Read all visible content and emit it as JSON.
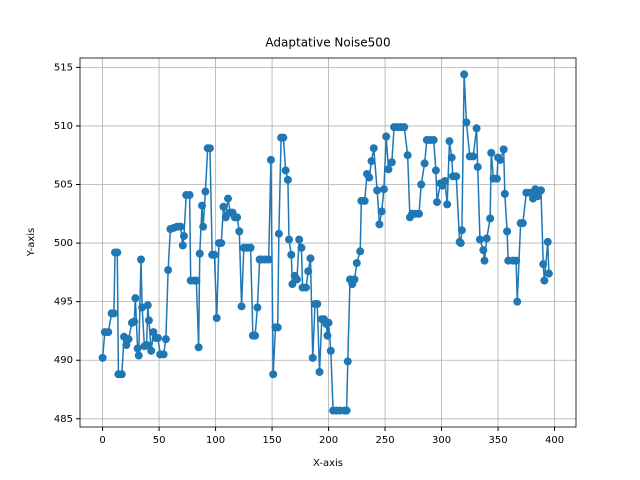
{
  "chart_data": {
    "type": "line",
    "title": "Adaptative Noise500",
    "x_label": "X-axis",
    "y_label": "Y-axis",
    "xlim": [
      -20,
      419
    ],
    "ylim": [
      484.3,
      515.8
    ],
    "xticks": [
      0,
      50,
      100,
      150,
      200,
      250,
      300,
      350,
      400
    ],
    "yticks": [
      485,
      490,
      495,
      500,
      505,
      510,
      515
    ],
    "grid": true,
    "series": [
      {
        "name": "Adaptative Noise500",
        "color": "#1f77b4",
        "x": [
          0,
          2,
          5,
          8,
          10,
          11,
          13,
          14,
          17,
          19,
          21,
          23,
          26,
          28,
          29,
          31,
          32,
          34,
          35,
          37,
          39,
          40,
          41,
          43,
          45,
          47,
          49,
          51,
          54,
          56,
          58,
          60,
          63,
          66,
          69,
          71,
          72,
          74,
          77,
          78,
          81,
          83,
          85,
          86,
          88,
          89,
          91,
          93,
          95,
          97,
          99,
          101,
          103,
          105,
          107,
          109,
          111,
          113,
          115,
          117,
          119,
          121,
          123,
          125,
          128,
          131,
          133,
          135,
          137,
          139,
          141,
          144,
          147,
          149,
          151,
          153,
          155,
          156,
          158,
          160,
          162,
          164,
          165,
          167,
          168,
          170,
          172,
          174,
          176,
          177,
          180,
          182,
          184,
          186,
          188,
          190,
          192,
          194,
          196,
          198,
          199,
          200,
          202,
          204,
          207,
          210,
          214,
          216,
          217,
          219,
          221,
          223,
          225,
          228,
          229,
          232,
          234,
          236,
          238,
          240,
          243,
          245,
          247,
          249,
          251,
          253,
          256,
          258,
          261,
          264,
          267,
          270,
          272,
          274,
          277,
          280,
          282,
          285,
          287,
          290,
          293,
          295,
          296,
          299,
          301,
          303,
          305,
          307,
          309,
          310,
          313,
          316,
          317,
          318,
          320,
          322,
          325,
          328,
          331,
          332,
          334,
          337,
          338,
          340,
          343,
          344,
          346,
          349,
          350,
          352,
          355,
          356,
          358,
          359,
          363,
          366,
          367,
          370,
          372,
          375,
          378,
          381,
          383,
          385,
          388,
          390,
          391,
          394,
          395
        ],
        "values": [
          490.2,
          492.4,
          492.4,
          494,
          494,
          499.2,
          499.2,
          488.8,
          488.8,
          492,
          491.3,
          491.8,
          493.2,
          493.3,
          495.3,
          491,
          490.4,
          498.6,
          494.5,
          491.2,
          491.3,
          494.7,
          493.4,
          490.8,
          492.4,
          491.9,
          491.9,
          490.5,
          490.5,
          491.8,
          497.7,
          501.2,
          501.3,
          501.4,
          501.4,
          499.8,
          500.6,
          504.1,
          504.1,
          496.8,
          496.8,
          496.8,
          491.1,
          499.1,
          503.2,
          501.4,
          504.4,
          508.1,
          508.1,
          499,
          499,
          493.6,
          500,
          500,
          503.1,
          502.2,
          503.8,
          502.6,
          502.6,
          502.2,
          502.2,
          501,
          494.6,
          499.6,
          499.6,
          499.6,
          492.1,
          492.1,
          494.5,
          498.6,
          498.6,
          498.6,
          498.6,
          507.1,
          488.8,
          492.8,
          492.8,
          500.8,
          509,
          509,
          506.2,
          505.4,
          500.3,
          499,
          496.5,
          497.2,
          496.9,
          500.3,
          499.6,
          496.2,
          496.2,
          497.6,
          498.7,
          490.2,
          494.8,
          494.8,
          489,
          493.5,
          493.5,
          493.1,
          492.1,
          493.2,
          490.8,
          485.7,
          485.7,
          485.7,
          485.7,
          485.7,
          489.9,
          496.9,
          496.5,
          496.9,
          498.3,
          499.3,
          503.6,
          503.6,
          505.9,
          505.6,
          507,
          508.1,
          504.5,
          501.6,
          502.7,
          504.6,
          509.1,
          506.3,
          506.9,
          509.9,
          509.9,
          509.9,
          509.9,
          507.5,
          502.2,
          502.5,
          502.5,
          502.5,
          505,
          506.8,
          508.8,
          508.8,
          508.8,
          506.2,
          503.5,
          505.1,
          504.9,
          505.3,
          503.3,
          508.7,
          507.3,
          505.7,
          505.7,
          500.1,
          500,
          501.1,
          514.4,
          510.3,
          507.4,
          507.4,
          509.8,
          506.5,
          500.3,
          499.4,
          498.5,
          500.4,
          502.1,
          507.7,
          505.5,
          505.5,
          507.3,
          507.1,
          508,
          504.2,
          501,
          498.5,
          498.5,
          498.5,
          495,
          501.7,
          501.7,
          504.3,
          504.3,
          503.8,
          504.6,
          504,
          504.5,
          498.2,
          496.8,
          500.1,
          497.4
        ]
      }
    ]
  }
}
